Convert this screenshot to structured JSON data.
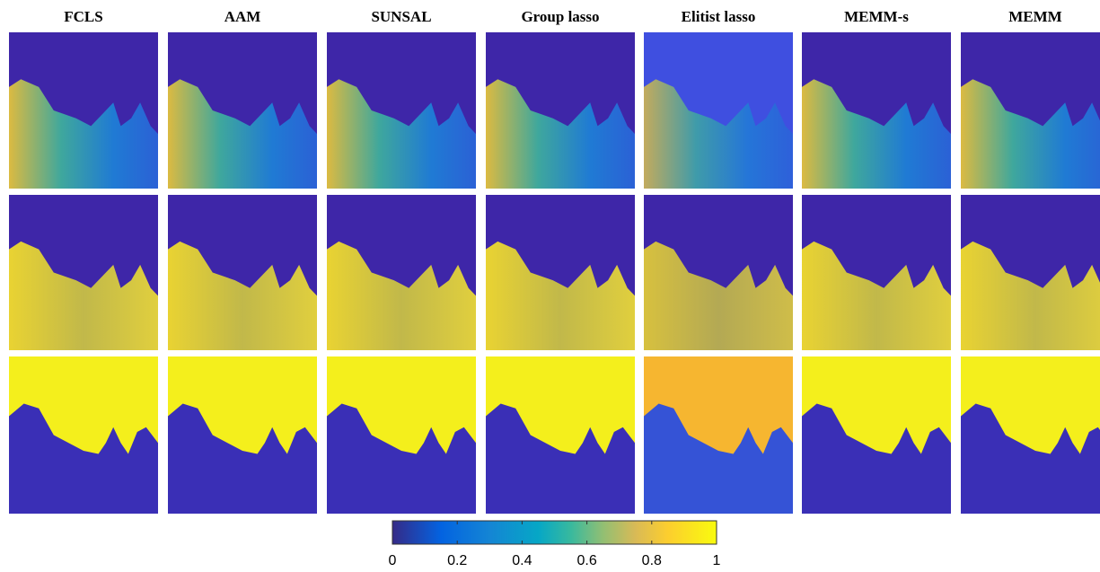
{
  "column_titles": [
    "FCLS",
    "AAM",
    "SUNSAL",
    "Group lasso",
    "Elitist lasso",
    "MEMM-s",
    "MEMM"
  ],
  "colorbar": {
    "lim": [
      0,
      1
    ],
    "ticks": [
      0,
      0.2,
      0.4,
      0.6,
      0.8,
      1
    ]
  }
}
